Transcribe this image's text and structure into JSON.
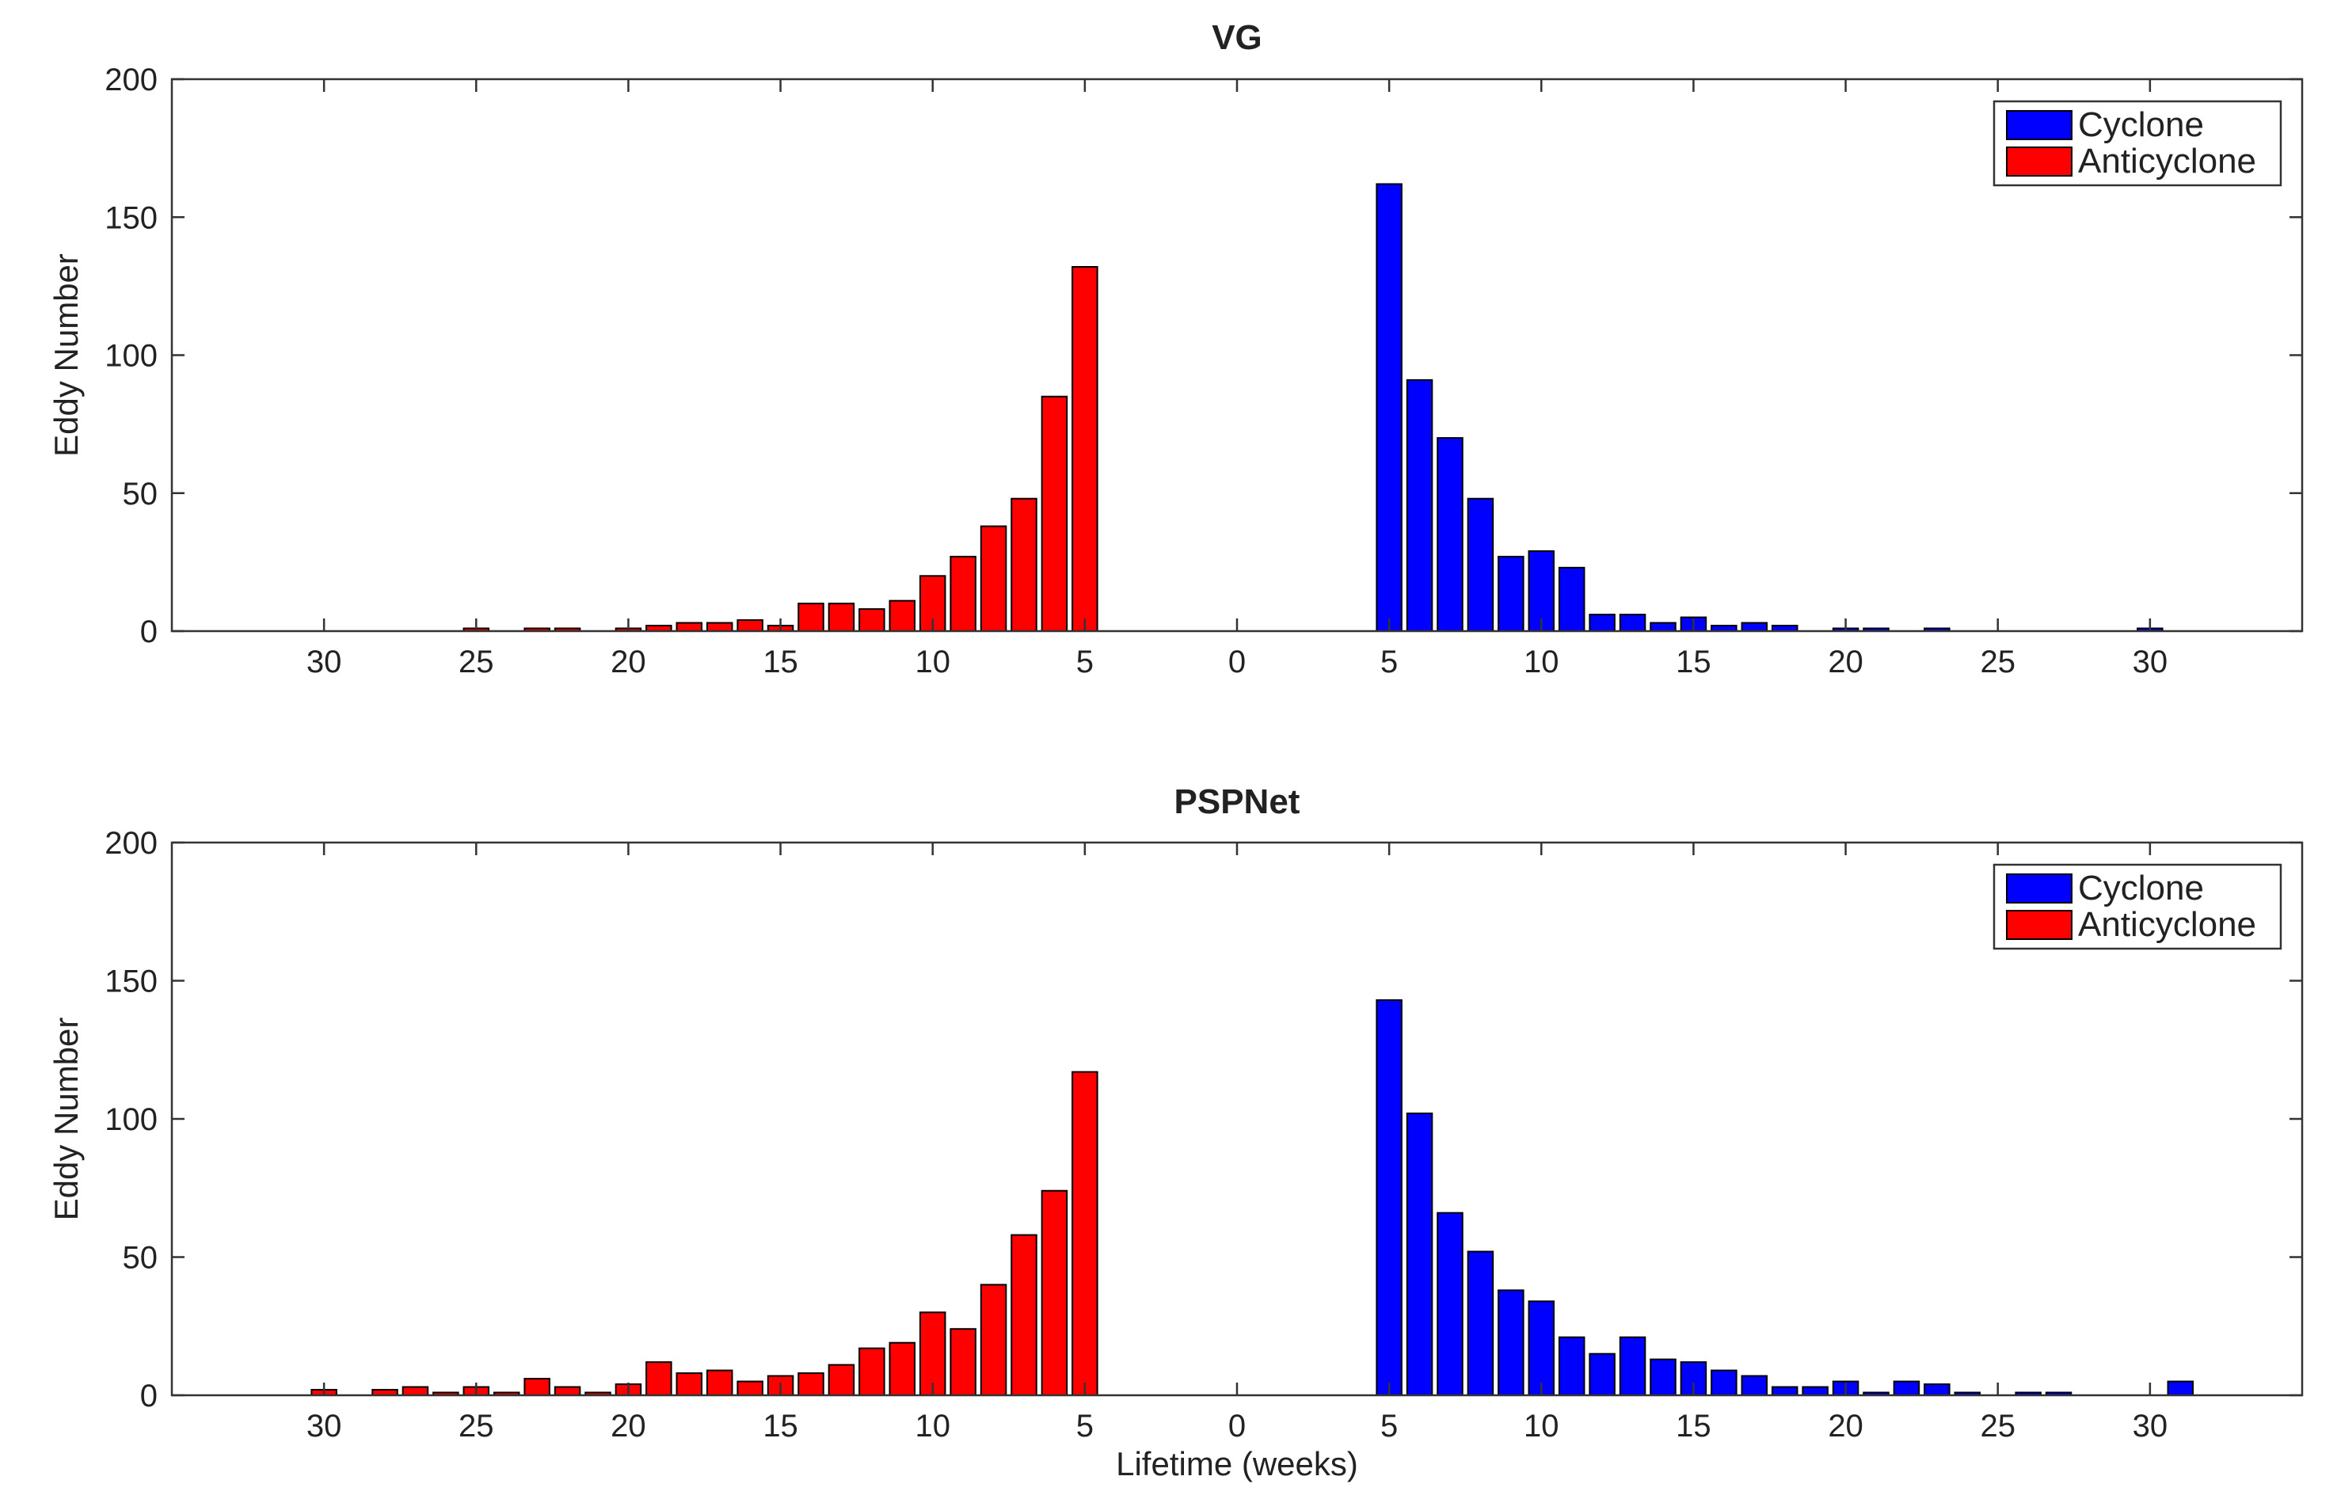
{
  "chart_data": [
    {
      "type": "bar",
      "title": "VG",
      "xlabel": "",
      "ylabel": "Eddy Number",
      "ylim": [
        0,
        200
      ],
      "yticks": [
        0,
        50,
        100,
        150,
        200
      ],
      "xlim": [
        -35,
        35
      ],
      "xticks": [
        -30,
        -25,
        -20,
        -15,
        -10,
        -5,
        0,
        5,
        10,
        15,
        20,
        25,
        30
      ],
      "xtick_labels": [
        "30",
        "25",
        "20",
        "15",
        "10",
        "5",
        "0",
        "5",
        "10",
        "15",
        "20",
        "25",
        "30"
      ],
      "legend": {
        "location": "top-right",
        "entries": [
          "Cyclone",
          "Anticyclone"
        ]
      },
      "series": [
        {
          "name": "Cyclone",
          "color": "#0000ff",
          "x": [
            5,
            6,
            7,
            8,
            9,
            10,
            11,
            12,
            13,
            14,
            15,
            16,
            17,
            18,
            19,
            20,
            21,
            22,
            23,
            24,
            25,
            26,
            27,
            28,
            29,
            30,
            31
          ],
          "values": [
            162,
            91,
            70,
            48,
            27,
            29,
            23,
            6,
            6,
            3,
            5,
            2,
            3,
            2,
            0,
            1,
            1,
            0,
            1,
            0,
            0,
            0,
            0,
            0,
            0,
            1,
            0
          ]
        },
        {
          "name": "Anticyclone",
          "color": "#ff0000",
          "x": [
            -5,
            -6,
            -7,
            -8,
            -9,
            -10,
            -11,
            -12,
            -13,
            -14,
            -15,
            -16,
            -17,
            -18,
            -19,
            -20,
            -21,
            -22,
            -23,
            -24,
            -25,
            -26,
            -27,
            -28,
            -29,
            -30,
            -31
          ],
          "values": [
            132,
            85,
            48,
            38,
            27,
            20,
            11,
            8,
            10,
            10,
            2,
            4,
            3,
            3,
            2,
            1,
            0,
            1,
            1,
            0,
            1,
            0,
            0,
            0,
            0,
            0,
            0
          ]
        }
      ]
    },
    {
      "type": "bar",
      "title": "PSPNet",
      "xlabel": "Lifetime (weeks)",
      "ylabel": "Eddy Number",
      "ylim": [
        0,
        200
      ],
      "yticks": [
        0,
        50,
        100,
        150,
        200
      ],
      "xlim": [
        -35,
        35
      ],
      "xticks": [
        -30,
        -25,
        -20,
        -15,
        -10,
        -5,
        0,
        5,
        10,
        15,
        20,
        25,
        30
      ],
      "xtick_labels": [
        "30",
        "25",
        "20",
        "15",
        "10",
        "5",
        "0",
        "5",
        "10",
        "15",
        "20",
        "25",
        "30"
      ],
      "legend": {
        "location": "top-right",
        "entries": [
          "Cyclone",
          "Anticyclone"
        ]
      },
      "series": [
        {
          "name": "Cyclone",
          "color": "#0000ff",
          "x": [
            5,
            6,
            7,
            8,
            9,
            10,
            11,
            12,
            13,
            14,
            15,
            16,
            17,
            18,
            19,
            20,
            21,
            22,
            23,
            24,
            25,
            26,
            27,
            28,
            29,
            30,
            31
          ],
          "values": [
            143,
            102,
            66,
            52,
            38,
            34,
            21,
            15,
            21,
            13,
            12,
            9,
            7,
            3,
            3,
            5,
            1,
            5,
            4,
            1,
            0,
            1,
            1,
            0,
            0,
            0,
            5
          ]
        },
        {
          "name": "Anticyclone",
          "color": "#ff0000",
          "x": [
            -5,
            -6,
            -7,
            -8,
            -9,
            -10,
            -11,
            -12,
            -13,
            -14,
            -15,
            -16,
            -17,
            -18,
            -19,
            -20,
            -21,
            -22,
            -23,
            -24,
            -25,
            -26,
            -27,
            -28,
            -29,
            -30,
            -31
          ],
          "values": [
            117,
            74,
            58,
            40,
            24,
            30,
            19,
            17,
            11,
            8,
            7,
            5,
            9,
            8,
            12,
            4,
            1,
            3,
            6,
            1,
            3,
            1,
            3,
            2,
            0,
            2,
            0
          ]
        }
      ]
    }
  ]
}
